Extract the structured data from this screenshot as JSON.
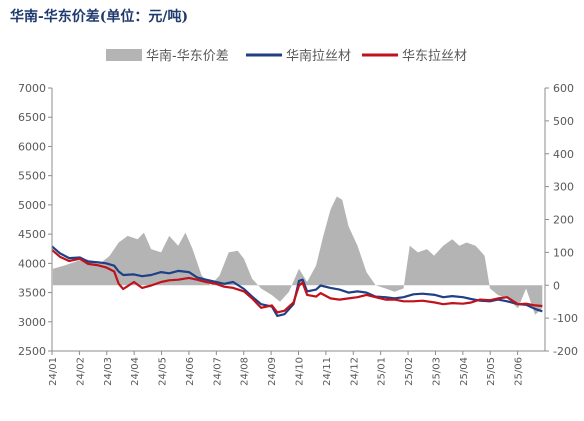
{
  "chart_data": {
    "type": "line",
    "title": "华南-华东价差(单位：元/吨)",
    "legend_position": "top-center",
    "grid": false,
    "colors": {
      "diff": "#b4b4b4",
      "south": "#1f3f86",
      "east": "#c0121b"
    },
    "left_axis": {
      "ylim": [
        2500,
        7000
      ],
      "ticks": [
        "2500",
        "3000",
        "3500",
        "4000",
        "4500",
        "5000",
        "5500",
        "6000",
        "6500",
        "7000"
      ]
    },
    "right_axis": {
      "ylim": [
        -200,
        600
      ],
      "ticks": [
        "-200",
        "-100",
        "0",
        "100",
        "200",
        "300",
        "400",
        "500",
        "600"
      ]
    },
    "x_axis": {
      "range": [
        "2024-01-01",
        "2025-07-01"
      ],
      "tick_labels": [
        "24/01",
        "24/02",
        "24/03",
        "24/04",
        "24/05",
        "24/06",
        "24/07",
        "24/08",
        "24/09",
        "24/10",
        "24/11",
        "24/12",
        "25/01",
        "25/02",
        "25/03",
        "25/04",
        "25/05",
        "25/06"
      ]
    },
    "series": [
      {
        "name": "华南-华东价差",
        "type": "area",
        "axis": "right",
        "color": "#b4b4b4",
        "points": [
          [
            "2024-01-02",
            50
          ],
          [
            "2024-01-15",
            60
          ],
          [
            "2024-02-05",
            80
          ],
          [
            "2024-02-25",
            70
          ],
          [
            "2024-03-05",
            90
          ],
          [
            "2024-03-15",
            130
          ],
          [
            "2024-03-25",
            150
          ],
          [
            "2024-04-05",
            140
          ],
          [
            "2024-04-12",
            160
          ],
          [
            "2024-04-20",
            110
          ],
          [
            "2024-05-01",
            100
          ],
          [
            "2024-05-10",
            150
          ],
          [
            "2024-05-20",
            120
          ],
          [
            "2024-05-28",
            160
          ],
          [
            "2024-06-05",
            110
          ],
          [
            "2024-06-15",
            30
          ],
          [
            "2024-06-25",
            0
          ],
          [
            "2024-07-05",
            30
          ],
          [
            "2024-07-15",
            100
          ],
          [
            "2024-07-25",
            105
          ],
          [
            "2024-08-01",
            80
          ],
          [
            "2024-08-10",
            20
          ],
          [
            "2024-08-20",
            -10
          ],
          [
            "2024-09-01",
            -30
          ],
          [
            "2024-09-10",
            -50
          ],
          [
            "2024-09-20",
            -20
          ],
          [
            "2024-10-01",
            50
          ],
          [
            "2024-10-10",
            10
          ],
          [
            "2024-10-20",
            60
          ],
          [
            "2024-10-28",
            150
          ],
          [
            "2024-11-05",
            230
          ],
          [
            "2024-11-12",
            270
          ],
          [
            "2024-11-18",
            260
          ],
          [
            "2024-11-25",
            180
          ],
          [
            "2024-12-05",
            120
          ],
          [
            "2024-12-15",
            40
          ],
          [
            "2024-12-25",
            0
          ],
          [
            "2025-01-05",
            -10
          ],
          [
            "2025-01-15",
            -20
          ],
          [
            "2025-01-25",
            -10
          ],
          [
            "2025-02-01",
            120
          ],
          [
            "2025-02-10",
            100
          ],
          [
            "2025-02-20",
            110
          ],
          [
            "2025-02-28",
            90
          ],
          [
            "2025-03-10",
            120
          ],
          [
            "2025-03-20",
            140
          ],
          [
            "2025-03-28",
            120
          ],
          [
            "2025-04-05",
            130
          ],
          [
            "2025-04-15",
            120
          ],
          [
            "2025-04-25",
            90
          ],
          [
            "2025-05-01",
            -10
          ],
          [
            "2025-05-10",
            -30
          ],
          [
            "2025-05-20",
            -40
          ],
          [
            "2025-06-01",
            -70
          ],
          [
            "2025-06-10",
            -10
          ],
          [
            "2025-06-20",
            -90
          ],
          [
            "2025-06-28",
            -70
          ]
        ]
      },
      {
        "name": "华南拉丝材",
        "type": "line",
        "axis": "left",
        "color": "#1f3f86",
        "points": [
          [
            "2024-01-01",
            4290
          ],
          [
            "2024-01-10",
            4170
          ],
          [
            "2024-01-20",
            4090
          ],
          [
            "2024-02-01",
            4100
          ],
          [
            "2024-02-10",
            4030
          ],
          [
            "2024-02-20",
            4020
          ],
          [
            "2024-03-01",
            4000
          ],
          [
            "2024-03-10",
            3960
          ],
          [
            "2024-03-15",
            3860
          ],
          [
            "2024-03-20",
            3800
          ],
          [
            "2024-04-01",
            3810
          ],
          [
            "2024-04-10",
            3780
          ],
          [
            "2024-04-20",
            3800
          ],
          [
            "2024-05-01",
            3850
          ],
          [
            "2024-05-10",
            3830
          ],
          [
            "2024-05-20",
            3870
          ],
          [
            "2024-06-01",
            3850
          ],
          [
            "2024-06-10",
            3760
          ],
          [
            "2024-06-20",
            3720
          ],
          [
            "2024-07-01",
            3680
          ],
          [
            "2024-07-10",
            3650
          ],
          [
            "2024-07-20",
            3680
          ],
          [
            "2024-08-01",
            3560
          ],
          [
            "2024-08-10",
            3430
          ],
          [
            "2024-08-20",
            3300
          ],
          [
            "2024-09-01",
            3260
          ],
          [
            "2024-09-07",
            3100
          ],
          [
            "2024-09-15",
            3130
          ],
          [
            "2024-09-25",
            3300
          ],
          [
            "2024-10-01",
            3700
          ],
          [
            "2024-10-05",
            3720
          ],
          [
            "2024-10-10",
            3520
          ],
          [
            "2024-10-20",
            3550
          ],
          [
            "2024-10-25",
            3620
          ],
          [
            "2024-11-05",
            3580
          ],
          [
            "2024-11-15",
            3550
          ],
          [
            "2024-11-25",
            3500
          ],
          [
            "2024-12-05",
            3520
          ],
          [
            "2024-12-15",
            3500
          ],
          [
            "2024-12-25",
            3430
          ],
          [
            "2025-01-05",
            3420
          ],
          [
            "2025-01-15",
            3400
          ],
          [
            "2025-01-25",
            3420
          ],
          [
            "2025-02-05",
            3470
          ],
          [
            "2025-02-15",
            3480
          ],
          [
            "2025-03-01",
            3460
          ],
          [
            "2025-03-10",
            3420
          ],
          [
            "2025-03-20",
            3440
          ],
          [
            "2025-04-01",
            3420
          ],
          [
            "2025-04-10",
            3390
          ],
          [
            "2025-04-20",
            3360
          ],
          [
            "2025-05-01",
            3350
          ],
          [
            "2025-05-10",
            3380
          ],
          [
            "2025-05-20",
            3350
          ],
          [
            "2025-06-01",
            3300
          ],
          [
            "2025-06-10",
            3290
          ],
          [
            "2025-06-20",
            3220
          ],
          [
            "2025-06-28",
            3180
          ]
        ]
      },
      {
        "name": "华东拉丝材",
        "type": "line",
        "axis": "left",
        "color": "#c0121b",
        "points": [
          [
            "2024-01-01",
            4230
          ],
          [
            "2024-01-10",
            4110
          ],
          [
            "2024-01-20",
            4040
          ],
          [
            "2024-02-01",
            4080
          ],
          [
            "2024-02-10",
            3990
          ],
          [
            "2024-02-20",
            3970
          ],
          [
            "2024-03-01",
            3930
          ],
          [
            "2024-03-10",
            3860
          ],
          [
            "2024-03-15",
            3650
          ],
          [
            "2024-03-20",
            3560
          ],
          [
            "2024-04-01",
            3680
          ],
          [
            "2024-04-10",
            3580
          ],
          [
            "2024-04-20",
            3620
          ],
          [
            "2024-05-01",
            3680
          ],
          [
            "2024-05-10",
            3710
          ],
          [
            "2024-05-20",
            3720
          ],
          [
            "2024-06-01",
            3750
          ],
          [
            "2024-06-10",
            3720
          ],
          [
            "2024-06-20",
            3680
          ],
          [
            "2024-07-01",
            3650
          ],
          [
            "2024-07-10",
            3600
          ],
          [
            "2024-07-20",
            3580
          ],
          [
            "2024-08-01",
            3520
          ],
          [
            "2024-08-10",
            3400
          ],
          [
            "2024-08-20",
            3240
          ],
          [
            "2024-09-01",
            3280
          ],
          [
            "2024-09-07",
            3160
          ],
          [
            "2024-09-15",
            3190
          ],
          [
            "2024-09-25",
            3330
          ],
          [
            "2024-10-01",
            3620
          ],
          [
            "2024-10-05",
            3670
          ],
          [
            "2024-10-10",
            3460
          ],
          [
            "2024-10-20",
            3430
          ],
          [
            "2024-10-25",
            3490
          ],
          [
            "2024-11-05",
            3400
          ],
          [
            "2024-11-15",
            3380
          ],
          [
            "2024-11-25",
            3400
          ],
          [
            "2024-12-05",
            3420
          ],
          [
            "2024-12-15",
            3460
          ],
          [
            "2024-12-25",
            3420
          ],
          [
            "2025-01-05",
            3380
          ],
          [
            "2025-01-15",
            3380
          ],
          [
            "2025-01-25",
            3350
          ],
          [
            "2025-02-05",
            3350
          ],
          [
            "2025-02-15",
            3360
          ],
          [
            "2025-03-01",
            3330
          ],
          [
            "2025-03-10",
            3300
          ],
          [
            "2025-03-20",
            3320
          ],
          [
            "2025-04-01",
            3310
          ],
          [
            "2025-04-10",
            3330
          ],
          [
            "2025-04-20",
            3380
          ],
          [
            "2025-05-01",
            3370
          ],
          [
            "2025-05-10",
            3400
          ],
          [
            "2025-05-20",
            3420
          ],
          [
            "2025-06-01",
            3300
          ],
          [
            "2025-06-10",
            3310
          ],
          [
            "2025-06-20",
            3280
          ],
          [
            "2025-06-28",
            3270
          ]
        ]
      }
    ]
  }
}
